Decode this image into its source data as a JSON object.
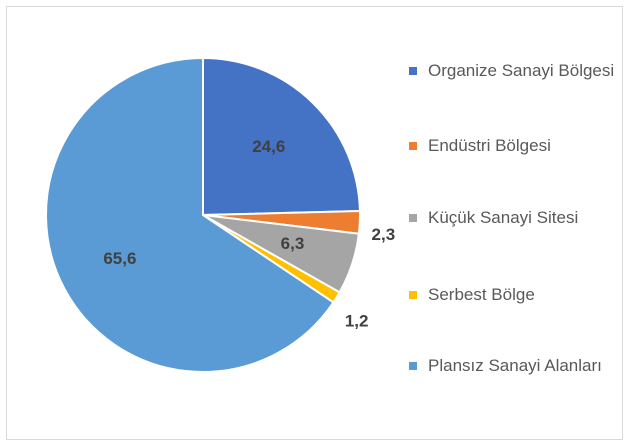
{
  "chart_data": {
    "type": "pie",
    "categories": [
      "Organize Sanayi Bölgesi",
      "Endüstri Bölgesi",
      "Küçük Sanayi Sitesi",
      "Serbest Bölge",
      "Plansız Sanayi Alanları"
    ],
    "values": [
      24.6,
      2.3,
      6.3,
      1.2,
      65.6
    ],
    "value_labels": [
      "24,6",
      "2,3",
      "6,3",
      "1,2",
      "65,6"
    ],
    "colors": [
      "#4472c4",
      "#ed7d31",
      "#a5a5a5",
      "#ffc000",
      "#5b9bd5"
    ],
    "legend": "right"
  }
}
